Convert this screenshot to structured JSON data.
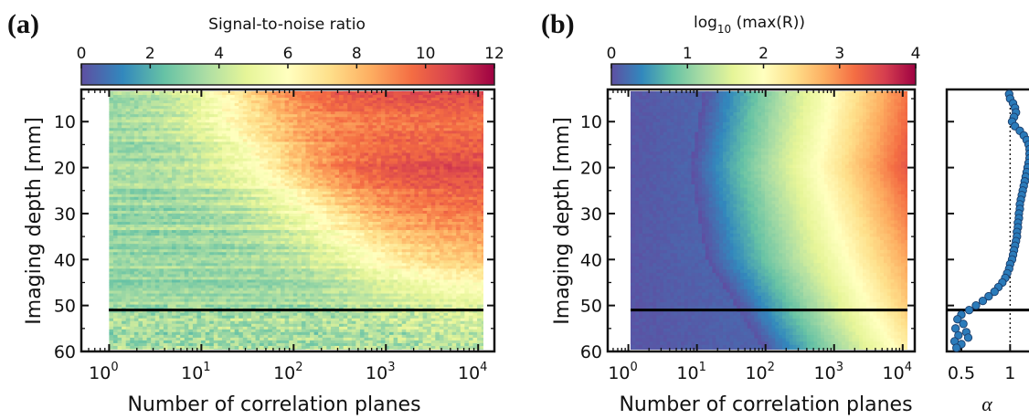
{
  "panels": {
    "a": {
      "label": "(a)"
    },
    "b": {
      "label": "(b)"
    }
  },
  "chart_data": [
    {
      "type": "heatmap",
      "panel": "(a)",
      "colorbar": {
        "title": "Signal-to-noise ratio",
        "min": 0,
        "max": 12,
        "ticks": [
          "0",
          "2",
          "4",
          "6",
          "8",
          "10",
          "12"
        ],
        "colormap": "Spectral_r"
      },
      "xlabel": "Number of correlation planes",
      "ylabel": "Imaging depth [mm]",
      "xscale": "log",
      "xlim": [
        0.5,
        15000
      ],
      "ylim": [
        60,
        3
      ],
      "x_ticks": [
        {
          "base": "10",
          "exp": "0"
        },
        {
          "base": "10",
          "exp": "1"
        },
        {
          "base": "10",
          "exp": "2"
        },
        {
          "base": "10",
          "exp": "3"
        },
        {
          "base": "10",
          "exp": "4"
        }
      ],
      "y_ticks": [
        "10",
        "20",
        "30",
        "40",
        "50",
        "60"
      ],
      "data_x_range": [
        1,
        12000
      ],
      "data_y_range": [
        3,
        60
      ],
      "snr_by_depth_at_max_planes": [
        {
          "depth": 5,
          "snr": 10.5
        },
        {
          "depth": 10,
          "snr": 9.5
        },
        {
          "depth": 20,
          "snr": 10.5
        },
        {
          "depth": 30,
          "snr": 9.5
        },
        {
          "depth": 40,
          "snr": 8.0
        },
        {
          "depth": 50,
          "snr": 5.0
        },
        {
          "depth": 60,
          "snr": 4.0
        }
      ],
      "hline": {
        "depth": 51,
        "color": "#000000"
      }
    },
    {
      "type": "heatmap",
      "panel": "(b)",
      "colorbar": {
        "title_base": "log",
        "title_sub": "10",
        "title_rest": " (max(R))",
        "min": 0,
        "max": 4,
        "ticks": [
          "0",
          "1",
          "2",
          "3",
          "4"
        ],
        "colormap": "Spectral_r"
      },
      "xlabel": "Number of correlation planes",
      "ylabel": "Imaging depth [mm]",
      "xscale": "log",
      "xlim": [
        0.5,
        15000
      ],
      "ylim": [
        60,
        3
      ],
      "x_ticks": [
        {
          "base": "10",
          "exp": "0"
        },
        {
          "base": "10",
          "exp": "1"
        },
        {
          "base": "10",
          "exp": "2"
        },
        {
          "base": "10",
          "exp": "3"
        },
        {
          "base": "10",
          "exp": "4"
        }
      ],
      "y_ticks": [
        "10",
        "20",
        "30",
        "40",
        "50",
        "60"
      ],
      "data_x_range": [
        1,
        12000
      ],
      "data_y_range": [
        3,
        60
      ],
      "log10_maxR_at_max_planes": [
        {
          "depth": 5,
          "value": 3.2
        },
        {
          "depth": 20,
          "value": 3.4
        },
        {
          "depth": 35,
          "value": 3.0
        },
        {
          "depth": 50,
          "value": 2.6
        },
        {
          "depth": 60,
          "value": 2.2
        }
      ],
      "hline": {
        "depth": 51,
        "color": "#000000"
      }
    },
    {
      "type": "scatter",
      "panel": "(b) side",
      "xlabel": "α",
      "x_ticks": [
        "0.5",
        "1"
      ],
      "xlim": [
        0.35,
        1.25
      ],
      "ylim": [
        60,
        3
      ],
      "ref_line_x": 1,
      "hline": {
        "depth": 51
      },
      "color": "#2b7bba",
      "points": [
        {
          "alpha": 0.99,
          "depth": 4
        },
        {
          "alpha": 1.0,
          "depth": 5
        },
        {
          "alpha": 1.03,
          "depth": 6
        },
        {
          "alpha": 1.05,
          "depth": 7
        },
        {
          "alpha": 1.06,
          "depth": 8
        },
        {
          "alpha": 1.04,
          "depth": 9
        },
        {
          "alpha": 1.02,
          "depth": 10
        },
        {
          "alpha": 1.05,
          "depth": 11
        },
        {
          "alpha": 1.1,
          "depth": 12
        },
        {
          "alpha": 1.14,
          "depth": 13
        },
        {
          "alpha": 1.17,
          "depth": 14
        },
        {
          "alpha": 1.19,
          "depth": 15
        },
        {
          "alpha": 1.2,
          "depth": 16
        },
        {
          "alpha": 1.2,
          "depth": 17
        },
        {
          "alpha": 1.2,
          "depth": 18
        },
        {
          "alpha": 1.19,
          "depth": 19
        },
        {
          "alpha": 1.18,
          "depth": 20
        },
        {
          "alpha": 1.17,
          "depth": 21
        },
        {
          "alpha": 1.16,
          "depth": 22
        },
        {
          "alpha": 1.15,
          "depth": 23
        },
        {
          "alpha": 1.14,
          "depth": 24
        },
        {
          "alpha": 1.13,
          "depth": 25
        },
        {
          "alpha": 1.12,
          "depth": 26
        },
        {
          "alpha": 1.11,
          "depth": 27
        },
        {
          "alpha": 1.1,
          "depth": 28
        },
        {
          "alpha": 1.1,
          "depth": 29
        },
        {
          "alpha": 1.09,
          "depth": 30
        },
        {
          "alpha": 1.09,
          "depth": 31
        },
        {
          "alpha": 1.08,
          "depth": 32
        },
        {
          "alpha": 1.08,
          "depth": 33
        },
        {
          "alpha": 1.07,
          "depth": 34
        },
        {
          "alpha": 1.07,
          "depth": 35
        },
        {
          "alpha": 1.06,
          "depth": 36
        },
        {
          "alpha": 1.05,
          "depth": 37
        },
        {
          "alpha": 1.04,
          "depth": 38
        },
        {
          "alpha": 1.03,
          "depth": 39
        },
        {
          "alpha": 1.02,
          "depth": 40
        },
        {
          "alpha": 1.0,
          "depth": 41
        },
        {
          "alpha": 0.99,
          "depth": 42
        },
        {
          "alpha": 0.97,
          "depth": 43
        },
        {
          "alpha": 0.95,
          "depth": 44
        },
        {
          "alpha": 0.92,
          "depth": 45
        },
        {
          "alpha": 0.88,
          "depth": 46
        },
        {
          "alpha": 0.84,
          "depth": 47
        },
        {
          "alpha": 0.78,
          "depth": 48
        },
        {
          "alpha": 0.72,
          "depth": 49
        },
        {
          "alpha": 0.65,
          "depth": 50
        },
        {
          "alpha": 0.58,
          "depth": 51
        },
        {
          "alpha": 0.5,
          "depth": 52
        },
        {
          "alpha": 0.46,
          "depth": 53
        },
        {
          "alpha": 0.52,
          "depth": 54
        },
        {
          "alpha": 0.44,
          "depth": 55
        },
        {
          "alpha": 0.55,
          "depth": 55.8
        },
        {
          "alpha": 0.47,
          "depth": 56.5
        },
        {
          "alpha": 0.57,
          "depth": 57
        },
        {
          "alpha": 0.43,
          "depth": 57.8
        },
        {
          "alpha": 0.5,
          "depth": 58.4
        },
        {
          "alpha": 0.45,
          "depth": 59.2
        }
      ]
    }
  ]
}
